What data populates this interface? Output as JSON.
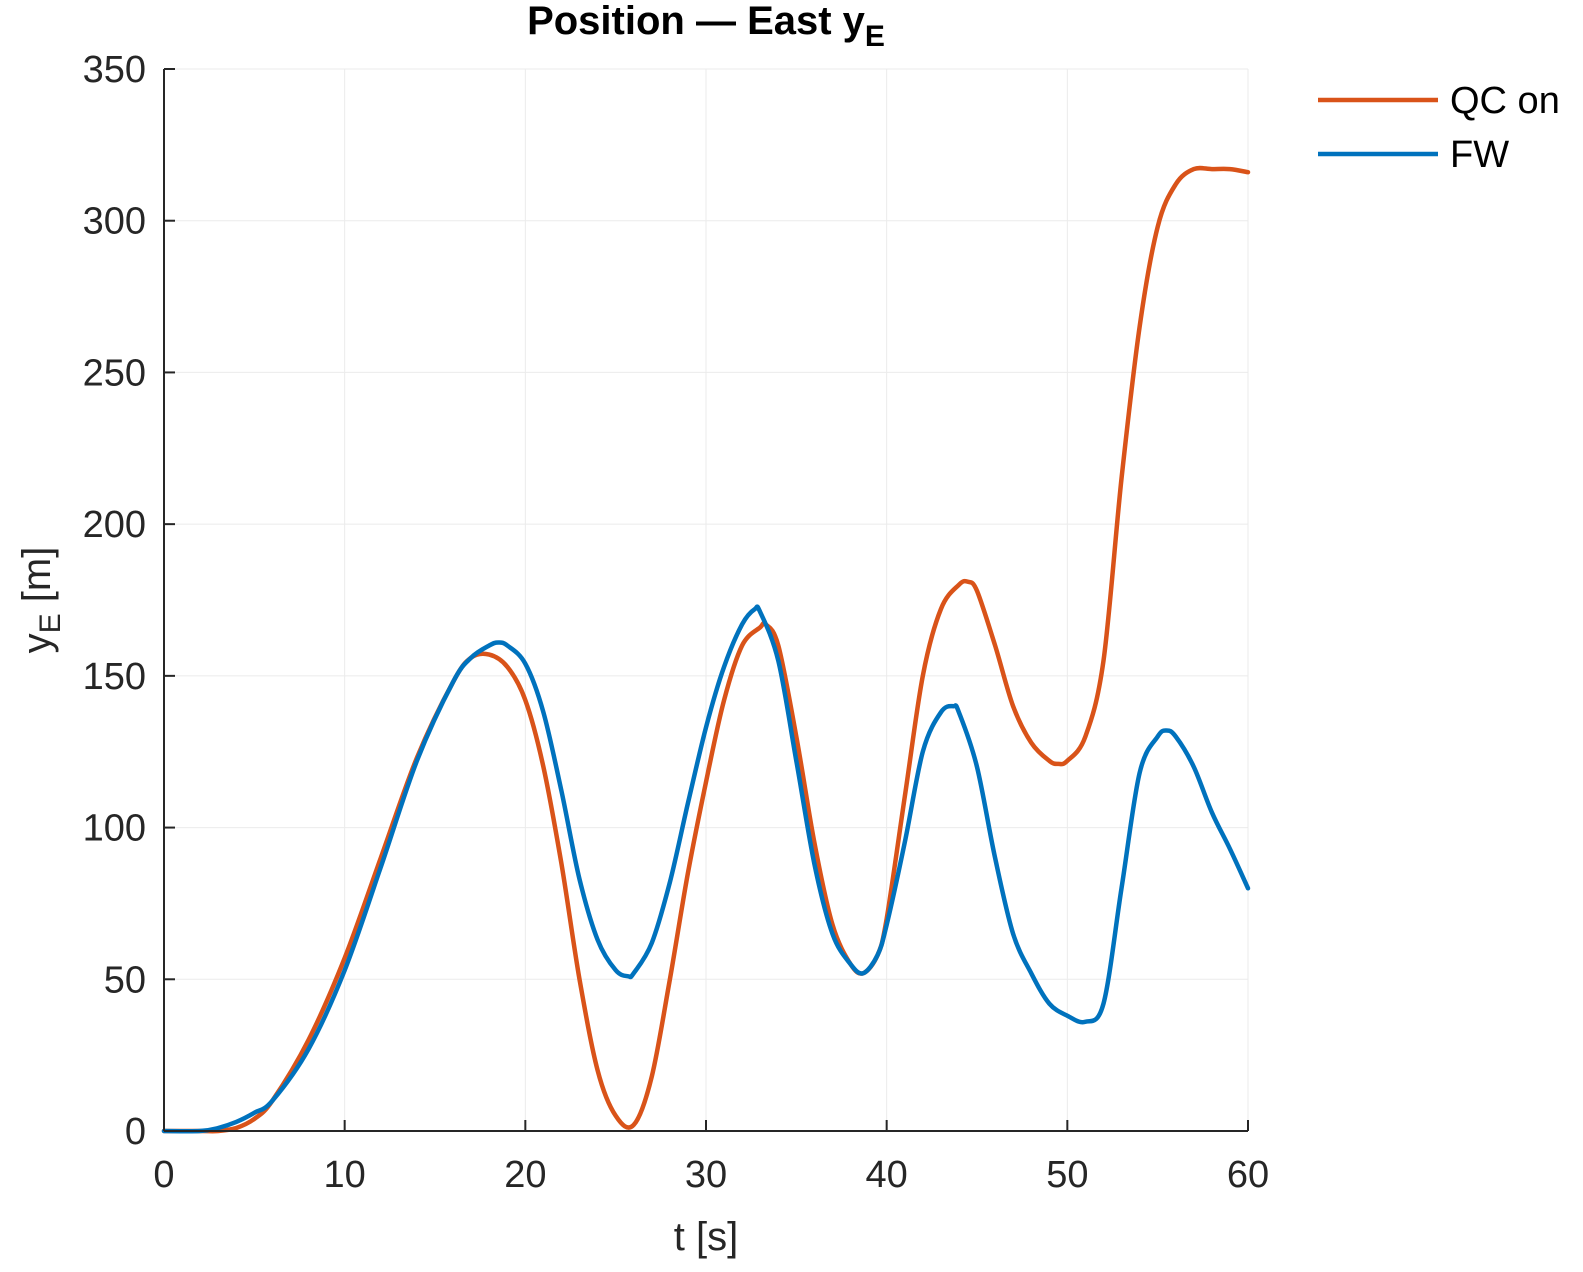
{
  "chart_data": {
    "type": "line",
    "title_main": "Position — East y",
    "title_sub": "E",
    "xlabel": "t [s]",
    "ylabel_main": "y",
    "ylabel_sub": "E",
    "ylabel_unit": " [m]",
    "xlim": [
      0,
      60
    ],
    "ylim": [
      0,
      350
    ],
    "xticks": [
      0,
      10,
      20,
      30,
      40,
      50,
      60
    ],
    "yticks": [
      0,
      50,
      100,
      150,
      200,
      250,
      300,
      350
    ],
    "grid": true,
    "legend_position": "top-right",
    "series": [
      {
        "name": "QC on",
        "color": "#d95319",
        "x": [
          0,
          2,
          3,
          4,
          5,
          6,
          8,
          10,
          12,
          14,
          16,
          17,
          18,
          19,
          20,
          21,
          22,
          23,
          24,
          25,
          26,
          27,
          28,
          29,
          30,
          31,
          32,
          33,
          33.3,
          34,
          35,
          36,
          37,
          38,
          38.7,
          39.5,
          40,
          41,
          42,
          43,
          44,
          44.5,
          45,
          46,
          47,
          48,
          49,
          49.5,
          50,
          51,
          52,
          53,
          54,
          55,
          56,
          57,
          58,
          59,
          60
        ],
        "y": [
          0,
          0,
          0,
          1,
          4,
          10,
          30,
          57,
          90,
          123,
          148,
          156,
          157,
          153,
          142,
          120,
          88,
          50,
          20,
          5,
          2,
          18,
          50,
          85,
          115,
          142,
          160,
          166,
          167,
          160,
          130,
          95,
          68,
          55,
          52,
          58,
          70,
          110,
          150,
          172,
          180,
          181,
          178,
          160,
          140,
          128,
          122,
          121,
          122,
          130,
          155,
          215,
          265,
          298,
          312,
          317,
          317,
          317,
          316
        ]
      },
      {
        "name": "FW",
        "color": "#0072bd",
        "x": [
          0,
          2,
          3,
          4,
          5,
          6,
          8,
          10,
          12,
          14,
          16,
          17,
          18,
          18.5,
          19,
          20,
          21,
          22,
          23,
          24,
          25,
          25.7,
          26,
          27,
          28,
          29,
          30,
          31,
          32,
          32.7,
          33,
          34,
          35,
          36,
          37,
          38,
          38.7,
          39.5,
          40,
          41,
          42,
          43,
          43.7,
          44,
          45,
          46,
          47,
          48,
          49,
          50,
          51,
          52,
          53,
          54,
          55,
          55.5,
          56,
          57,
          58,
          59,
          60
        ],
        "y": [
          0,
          0,
          1,
          3,
          6,
          10,
          27,
          53,
          87,
          122,
          148,
          156,
          160,
          161,
          160,
          154,
          138,
          112,
          83,
          63,
          53,
          51,
          52,
          62,
          82,
          108,
          133,
          153,
          167,
          172,
          171,
          155,
          122,
          88,
          65,
          55,
          52,
          58,
          68,
          95,
          125,
          138,
          140,
          138,
          120,
          90,
          65,
          52,
          42,
          38,
          36,
          42,
          80,
          118,
          130,
          132,
          130,
          120,
          105,
          93,
          80
        ]
      }
    ]
  }
}
